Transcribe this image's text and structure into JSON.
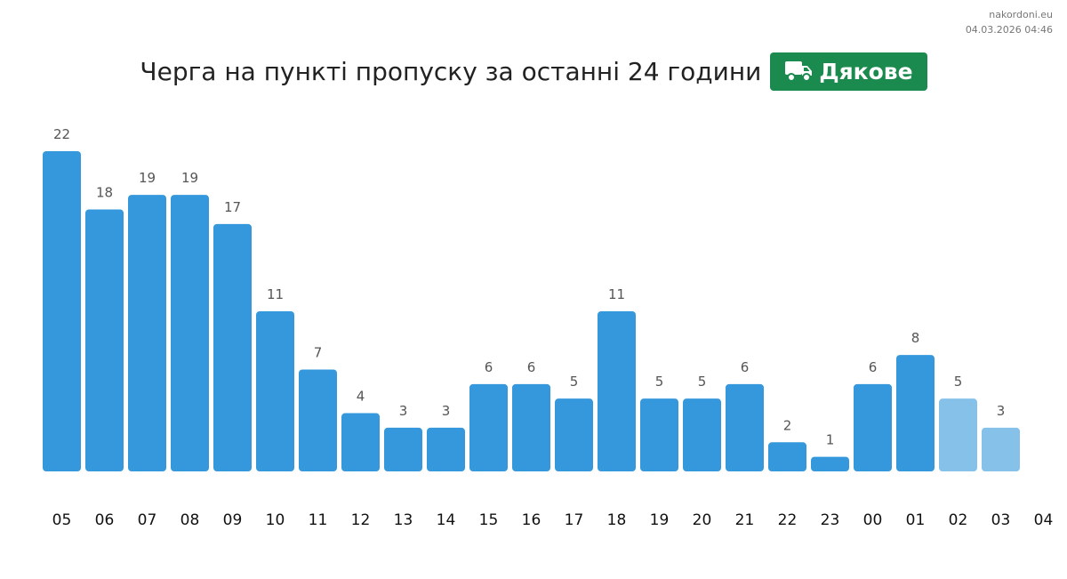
{
  "source": {
    "site": "nakordoni.eu",
    "timestamp": "04.03.2026 04:46"
  },
  "header": {
    "title": "Черга на пункті пропуску за останні 24 години",
    "checkpoint": "Дякове",
    "checkpoint_icon": "truck-icon",
    "checkpoint_color": "#1a8a4f"
  },
  "colors": {
    "bar": "#3598dc",
    "bar_recent": "#85c1e9"
  },
  "chart_data": {
    "type": "bar",
    "title": "Черга на пункті пропуску за останні 24 години",
    "categories": [
      "05",
      "06",
      "07",
      "08",
      "09",
      "10",
      "11",
      "12",
      "13",
      "14",
      "15",
      "16",
      "17",
      "18",
      "19",
      "20",
      "21",
      "22",
      "23",
      "00",
      "01",
      "02",
      "03"
    ],
    "values": [
      22,
      18,
      19,
      19,
      17,
      11,
      7,
      4,
      3,
      3,
      6,
      6,
      5,
      11,
      5,
      5,
      6,
      2,
      1,
      6,
      8,
      5,
      3
    ],
    "x_ticks": [
      "05",
      "06",
      "07",
      "08",
      "09",
      "10",
      "11",
      "12",
      "13",
      "14",
      "15",
      "16",
      "17",
      "18",
      "19",
      "20",
      "21",
      "22",
      "23",
      "00",
      "01",
      "02",
      "03",
      "04"
    ],
    "highlighted_recent": [
      "02",
      "03"
    ],
    "xlabel": "",
    "ylabel": "",
    "ylim": [
      0,
      22
    ],
    "grid": false,
    "data_labels": true
  }
}
